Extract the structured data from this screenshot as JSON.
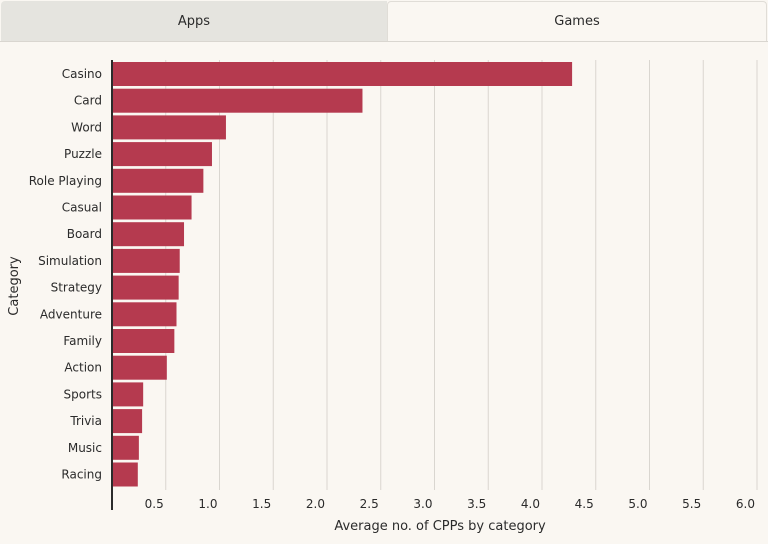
{
  "tabs": [
    {
      "label": "Apps",
      "active": false
    },
    {
      "label": "Games",
      "active": true
    }
  ],
  "chart_data": {
    "type": "bar",
    "orientation": "horizontal",
    "categories": [
      "Casino",
      "Card",
      "Word",
      "Puzzle",
      "Role Playing",
      "Casual",
      "Board",
      "Simulation",
      "Strategy",
      "Adventure",
      "Family",
      "Action",
      "Sports",
      "Trivia",
      "Music",
      "Racing"
    ],
    "values": [
      4.28,
      2.33,
      1.06,
      0.93,
      0.85,
      0.74,
      0.67,
      0.63,
      0.62,
      0.6,
      0.58,
      0.51,
      0.29,
      0.28,
      0.25,
      0.24
    ],
    "xlabel": "Average no. of CPPs by category",
    "ylabel": "Category",
    "xticks": [
      "0.5",
      "1.0",
      "1.5",
      "2.0",
      "2.5",
      "3.0",
      "3.5",
      "4.0",
      "4.5",
      "5.0",
      "5.5",
      "6.0"
    ],
    "xlim": [
      0,
      6.0
    ],
    "grid": "vertical",
    "bar_color": "#b53a4f",
    "grid_color": "#d9d6d0",
    "axis_color": "#2b2b2b"
  }
}
